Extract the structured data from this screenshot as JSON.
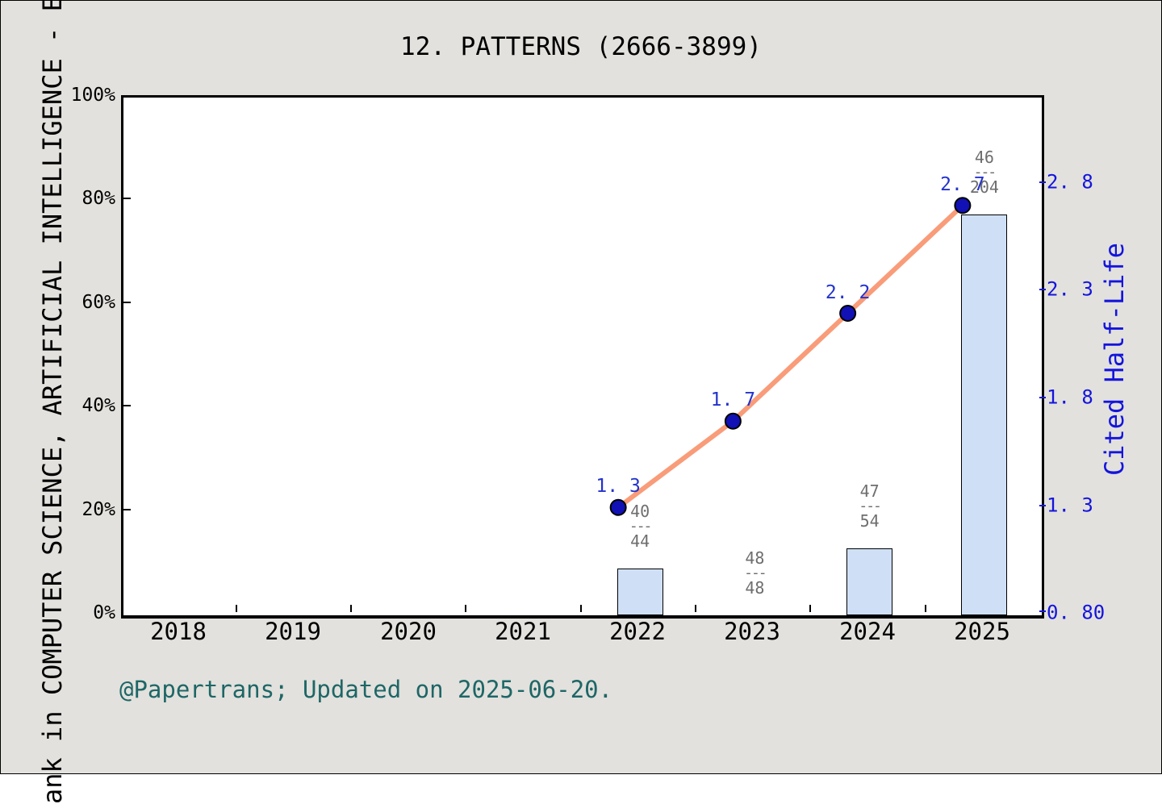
{
  "title": "12.  PATTERNS (2666-3899)",
  "footer": "@Papertrans; Updated on 2025-06-20.",
  "left_axis": {
    "label": "ank in COMPUTER SCIENCE, ARTIFICIAL INTELLIGENCE - E",
    "ticks": [
      "100%",
      "80%",
      "60%",
      "40%",
      "20%",
      "0%"
    ]
  },
  "right_axis": {
    "label": "Cited Half-Life",
    "tick_labels": [
      "2. 8",
      "2. 3",
      "1. 8",
      "1. 3",
      "0. 80"
    ]
  },
  "x_axis": {
    "years": [
      "2018",
      "2019",
      "2020",
      "2021",
      "2022",
      "2023",
      "2024",
      "2025"
    ]
  },
  "chart_data": {
    "type": "combo-bar-line",
    "categories": [
      "2018",
      "2019",
      "2020",
      "2021",
      "2022",
      "2023",
      "2024",
      "2025"
    ],
    "series": [
      {
        "name": "category-rank-percentile",
        "type": "bar",
        "axis": "left-percent",
        "points": [
          {
            "year": "2022",
            "numerator": "40",
            "denominator": "44",
            "bar_pct": 9.09
          },
          {
            "year": "2023",
            "numerator": "48",
            "denominator": "48",
            "bar_pct": 0
          },
          {
            "year": "2024",
            "numerator": "47",
            "denominator": "54",
            "bar_pct": 12.96
          },
          {
            "year": "2025",
            "numerator": "46",
            "denominator": "204",
            "bar_pct": 77.45
          }
        ]
      },
      {
        "name": "cited-half-life",
        "type": "line",
        "axis": "right",
        "points": [
          {
            "year": "2022",
            "value": 1.3,
            "label": "1. 3"
          },
          {
            "year": "2023",
            "value": 1.7,
            "label": "1. 7"
          },
          {
            "year": "2024",
            "value": 2.2,
            "label": "2. 2"
          },
          {
            "year": "2025",
            "value": 2.7,
            "label": "2. 7"
          }
        ]
      }
    ],
    "left_axis_range_pct": [
      0,
      100
    ],
    "right_axis_range": [
      0.8,
      3.2
    ],
    "right_axis_ticks": [
      0.8,
      1.3,
      1.8,
      2.3,
      2.8
    ],
    "grid": false,
    "legend": false
  },
  "colors": {
    "background": "#e2e1dd",
    "plot_background": "#ffffff",
    "bar_fill": "#cfe0f6",
    "bar_border": "#000000",
    "line": "#f99c79",
    "dot_fill": "#1111b5",
    "dot_border": "#000000",
    "right_axis_blue": "#1414dd",
    "point_label_blue": "#2433cc",
    "fraction_gray": "#6e6e6e",
    "footer_teal": "#1e6666"
  }
}
